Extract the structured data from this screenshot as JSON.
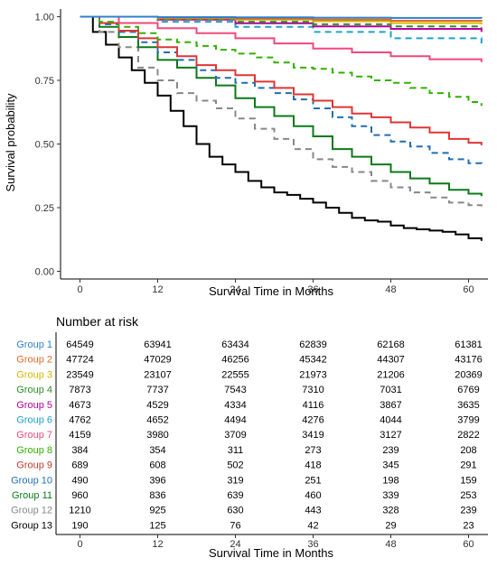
{
  "chart_data": [
    {
      "type": "line",
      "subtype": "kaplan-meier",
      "title": "",
      "xlabel": "Survival Time in Months",
      "ylabel": "Survival probability",
      "xlim": [
        -3,
        63
      ],
      "ylim": [
        -0.03,
        1.03
      ],
      "xticks": [
        0,
        12,
        24,
        36,
        48,
        60
      ],
      "yticks": [
        0.0,
        0.25,
        0.5,
        0.75,
        1.0
      ],
      "ytick_labels": [
        "0.00",
        "0.25",
        "0.50",
        "0.75",
        "1.00"
      ],
      "grid": false,
      "legend": "none",
      "series": [
        {
          "group": "Group 1",
          "color": "#2f7fd0",
          "dash": "solid",
          "x": [
            0,
            12,
            24,
            36,
            48,
            62
          ],
          "y": [
            1.0,
            0.998,
            0.997,
            0.996,
            0.995,
            0.994
          ]
        },
        {
          "group": "Group 2",
          "color": "#e06a24",
          "dash": "solid",
          "x": [
            0,
            12,
            24,
            36,
            48,
            62
          ],
          "y": [
            1.0,
            0.996,
            0.992,
            0.988,
            0.984,
            0.981
          ]
        },
        {
          "group": "Group 3",
          "color": "#d6b400",
          "dash": "solid",
          "x": [
            0,
            12,
            24,
            36,
            48,
            62
          ],
          "y": [
            1.0,
            0.994,
            0.988,
            0.982,
            0.975,
            0.97
          ]
        },
        {
          "group": "Group 4",
          "color": "#2e8b2e",
          "dash": "dashed",
          "x": [
            0,
            12,
            24,
            36,
            48,
            62
          ],
          "y": [
            1.0,
            0.99,
            0.98,
            0.97,
            0.962,
            0.955
          ]
        },
        {
          "group": "Group 5",
          "color": "#b4009e",
          "dash": "solid",
          "x": [
            0,
            12,
            24,
            36,
            48,
            62
          ],
          "y": [
            1.0,
            0.988,
            0.974,
            0.962,
            0.952,
            0.94
          ]
        },
        {
          "group": "Group 6",
          "color": "#1aa3c9",
          "dash": "dashed",
          "x": [
            0,
            12,
            24,
            36,
            48,
            62
          ],
          "y": [
            1.0,
            0.98,
            0.96,
            0.94,
            0.915,
            0.895
          ]
        },
        {
          "group": "Group 7",
          "color": "#f0487a",
          "dash": "solid",
          "x": [
            0,
            6,
            12,
            18,
            24,
            30,
            36,
            42,
            48,
            54,
            62
          ],
          "y": [
            1.0,
            0.975,
            0.955,
            0.935,
            0.915,
            0.895,
            0.875,
            0.86,
            0.845,
            0.833,
            0.822
          ]
        },
        {
          "group": "Group 8",
          "color": "#33b000",
          "dash": "dashed",
          "x": [
            0,
            3,
            6,
            9,
            12,
            15,
            18,
            21,
            24,
            27,
            30,
            33,
            36,
            39,
            42,
            45,
            48,
            51,
            54,
            57,
            60,
            62
          ],
          "y": [
            1.0,
            0.98,
            0.96,
            0.935,
            0.91,
            0.9,
            0.885,
            0.87,
            0.855,
            0.84,
            0.82,
            0.8,
            0.795,
            0.78,
            0.765,
            0.75,
            0.74,
            0.72,
            0.7,
            0.685,
            0.665,
            0.65
          ]
        },
        {
          "group": "Group 9",
          "color": "#e03535",
          "dash": "solid",
          "x": [
            0,
            3,
            6,
            9,
            12,
            15,
            18,
            21,
            24,
            27,
            30,
            33,
            36,
            39,
            42,
            45,
            48,
            51,
            54,
            57,
            60,
            62
          ],
          "y": [
            1.0,
            0.975,
            0.945,
            0.915,
            0.88,
            0.845,
            0.81,
            0.79,
            0.77,
            0.745,
            0.72,
            0.695,
            0.67,
            0.645,
            0.62,
            0.605,
            0.585,
            0.565,
            0.545,
            0.52,
            0.505,
            0.495
          ]
        },
        {
          "group": "Group 10",
          "color": "#1f6fb4",
          "dash": "dashed",
          "x": [
            0,
            3,
            6,
            9,
            12,
            15,
            18,
            21,
            24,
            27,
            30,
            33,
            36,
            39,
            42,
            45,
            48,
            51,
            54,
            57,
            60,
            62
          ],
          "y": [
            1.0,
            0.97,
            0.94,
            0.9,
            0.86,
            0.83,
            0.79,
            0.76,
            0.74,
            0.72,
            0.7,
            0.675,
            0.64,
            0.605,
            0.57,
            0.535,
            0.51,
            0.49,
            0.465,
            0.44,
            0.425,
            0.41
          ]
        },
        {
          "group": "Group 11",
          "color": "#0b7a1a",
          "dash": "solid",
          "x": [
            0,
            3,
            6,
            9,
            12,
            15,
            18,
            21,
            24,
            27,
            30,
            33,
            36,
            39,
            42,
            45,
            48,
            51,
            54,
            57,
            60,
            62
          ],
          "y": [
            1.0,
            0.96,
            0.92,
            0.88,
            0.83,
            0.8,
            0.76,
            0.73,
            0.68,
            0.645,
            0.61,
            0.57,
            0.53,
            0.48,
            0.45,
            0.42,
            0.39,
            0.365,
            0.345,
            0.32,
            0.305,
            0.295
          ]
        },
        {
          "group": "Group 12",
          "color": "#888888",
          "dash": "dashed",
          "x": [
            0,
            3,
            6,
            9,
            12,
            15,
            18,
            21,
            24,
            27,
            30,
            33,
            36,
            39,
            42,
            45,
            48,
            51,
            54,
            57,
            60,
            62
          ],
          "y": [
            1.0,
            0.94,
            0.88,
            0.8,
            0.75,
            0.7,
            0.67,
            0.64,
            0.6,
            0.56,
            0.52,
            0.48,
            0.44,
            0.41,
            0.39,
            0.355,
            0.33,
            0.31,
            0.29,
            0.27,
            0.26,
            0.255
          ]
        },
        {
          "group": "Group 13",
          "color": "#000000",
          "dash": "solid",
          "x": [
            0,
            2,
            4,
            6,
            8,
            10,
            12,
            14,
            16,
            18,
            20,
            22,
            24,
            26,
            28,
            30,
            32,
            34,
            36,
            38,
            40,
            42,
            44,
            46,
            48,
            50,
            52,
            54,
            56,
            58,
            60,
            62
          ],
          "y": [
            1.0,
            0.94,
            0.89,
            0.84,
            0.79,
            0.74,
            0.69,
            0.63,
            0.57,
            0.5,
            0.45,
            0.42,
            0.39,
            0.355,
            0.33,
            0.31,
            0.3,
            0.285,
            0.27,
            0.25,
            0.23,
            0.21,
            0.2,
            0.195,
            0.18,
            0.17,
            0.165,
            0.16,
            0.155,
            0.145,
            0.13,
            0.12
          ]
        }
      ]
    },
    {
      "type": "table",
      "title": "Number at risk",
      "xlabel": "Survival Time in Months",
      "columns": [
        0,
        12,
        24,
        36,
        48,
        60
      ],
      "column_labels": [
        "0",
        "12",
        "24",
        "36",
        "48",
        "60"
      ],
      "rows": [
        {
          "label": "Group 1",
          "color": "#2f7fd0",
          "values": [
            64549,
            63941,
            63434,
            62839,
            62168,
            61381
          ]
        },
        {
          "label": "Group 2",
          "color": "#e06a24",
          "values": [
            47724,
            47029,
            46256,
            45342,
            44307,
            43176
          ]
        },
        {
          "label": "Group 3",
          "color": "#d6b400",
          "values": [
            23549,
            23107,
            22555,
            21973,
            21206,
            20369
          ]
        },
        {
          "label": "Group 4",
          "color": "#2e8b2e",
          "values": [
            7873,
            7737,
            7543,
            7310,
            7031,
            6769
          ]
        },
        {
          "label": "Group 5",
          "color": "#b4009e",
          "values": [
            4673,
            4529,
            4334,
            4116,
            3867,
            3635
          ]
        },
        {
          "label": "Group 6",
          "color": "#1aa3c9",
          "values": [
            4762,
            4652,
            4494,
            4276,
            4044,
            3799
          ]
        },
        {
          "label": "Group 7",
          "color": "#f0487a",
          "values": [
            4159,
            3980,
            3709,
            3419,
            3127,
            2822
          ]
        },
        {
          "label": "Group 8",
          "color": "#33b000",
          "values": [
            384,
            354,
            311,
            273,
            239,
            208
          ]
        },
        {
          "label": "Group 9",
          "color": "#c0392b",
          "values": [
            689,
            608,
            502,
            418,
            345,
            291
          ]
        },
        {
          "label": "Group 10",
          "color": "#1f6fb4",
          "values": [
            490,
            396,
            319,
            251,
            198,
            159
          ]
        },
        {
          "label": "Group 11",
          "color": "#0b7a1a",
          "values": [
            960,
            836,
            639,
            460,
            339,
            253
          ]
        },
        {
          "label": "Group 12",
          "color": "#888888",
          "values": [
            1210,
            925,
            630,
            443,
            328,
            239
          ]
        },
        {
          "label": "Group 13",
          "color": "#000000",
          "values": [
            190,
            125,
            76,
            42,
            29,
            23
          ]
        }
      ]
    }
  ]
}
